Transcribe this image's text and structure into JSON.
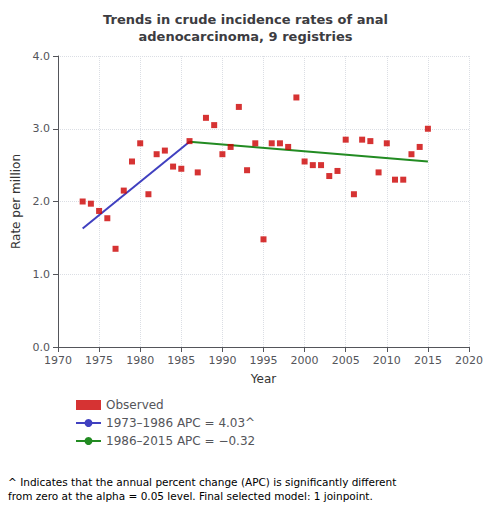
{
  "chart_data": {
    "type": "scatter",
    "title": "Trends in crude incidence rates of anal\nadenocarcinoma, 9 registries",
    "x_label": "Year",
    "y_label": "Rate per million",
    "xlim": [
      1970,
      2020
    ],
    "ylim": [
      0.0,
      4.0
    ],
    "xticks": [
      1970,
      1975,
      1980,
      1985,
      1990,
      1995,
      2000,
      2005,
      2010,
      2015,
      2020
    ],
    "yticks": [
      {
        "value": 0.0,
        "label": "0.0"
      },
      {
        "value": 1.0,
        "label": "1.0"
      },
      {
        "value": 2.0,
        "label": "2.0"
      },
      {
        "value": 3.0,
        "label": "3.0"
      },
      {
        "value": 4.0,
        "label": "4.0"
      }
    ],
    "grid": true,
    "legend": "bottom",
    "series": [
      {
        "name": "Observed",
        "type": "scatter",
        "color": "#cc0000",
        "marker": "square",
        "x": [
          1973,
          1974,
          1975,
          1976,
          1977,
          1978,
          1979,
          1980,
          1981,
          1982,
          1983,
          1984,
          1985,
          1986,
          1987,
          1988,
          1989,
          1990,
          1991,
          1992,
          1993,
          1994,
          1995,
          1996,
          1997,
          1998,
          1999,
          2000,
          2001,
          2002,
          2003,
          2004,
          2005,
          2006,
          2007,
          2008,
          2009,
          2010,
          2011,
          2012,
          2013,
          2014,
          2015
        ],
        "values": [
          2.0,
          1.97,
          1.87,
          1.77,
          1.35,
          2.15,
          2.55,
          2.8,
          2.1,
          2.65,
          2.7,
          2.48,
          2.45,
          2.83,
          2.4,
          3.15,
          3.05,
          2.65,
          2.75,
          3.3,
          2.43,
          2.8,
          1.48,
          2.8,
          2.8,
          2.75,
          3.43,
          2.55,
          2.5,
          2.5,
          2.35,
          2.42,
          2.85,
          2.1,
          2.85,
          2.83,
          2.4,
          2.8,
          2.3,
          2.3,
          2.65,
          2.75,
          3.0
        ]
      },
      {
        "name": "1973–1986 APC = 4.03^",
        "type": "line",
        "color": "#4040c0",
        "line_style": "solid",
        "x": [
          1973,
          1986
        ],
        "values": [
          1.63,
          2.82
        ]
      },
      {
        "name": "1986–2015 APC = −0.32",
        "type": "line",
        "color": "#228B22",
        "line_style": "solid",
        "x": [
          1986,
          2015
        ],
        "values": [
          2.82,
          2.55
        ]
      }
    ],
    "annotations": [
      "^ Indicates that the annual percent change (APC) is significantly different",
      "from zero at the alpha = 0.05 level. Final selected model: 1 joinpoint."
    ]
  }
}
